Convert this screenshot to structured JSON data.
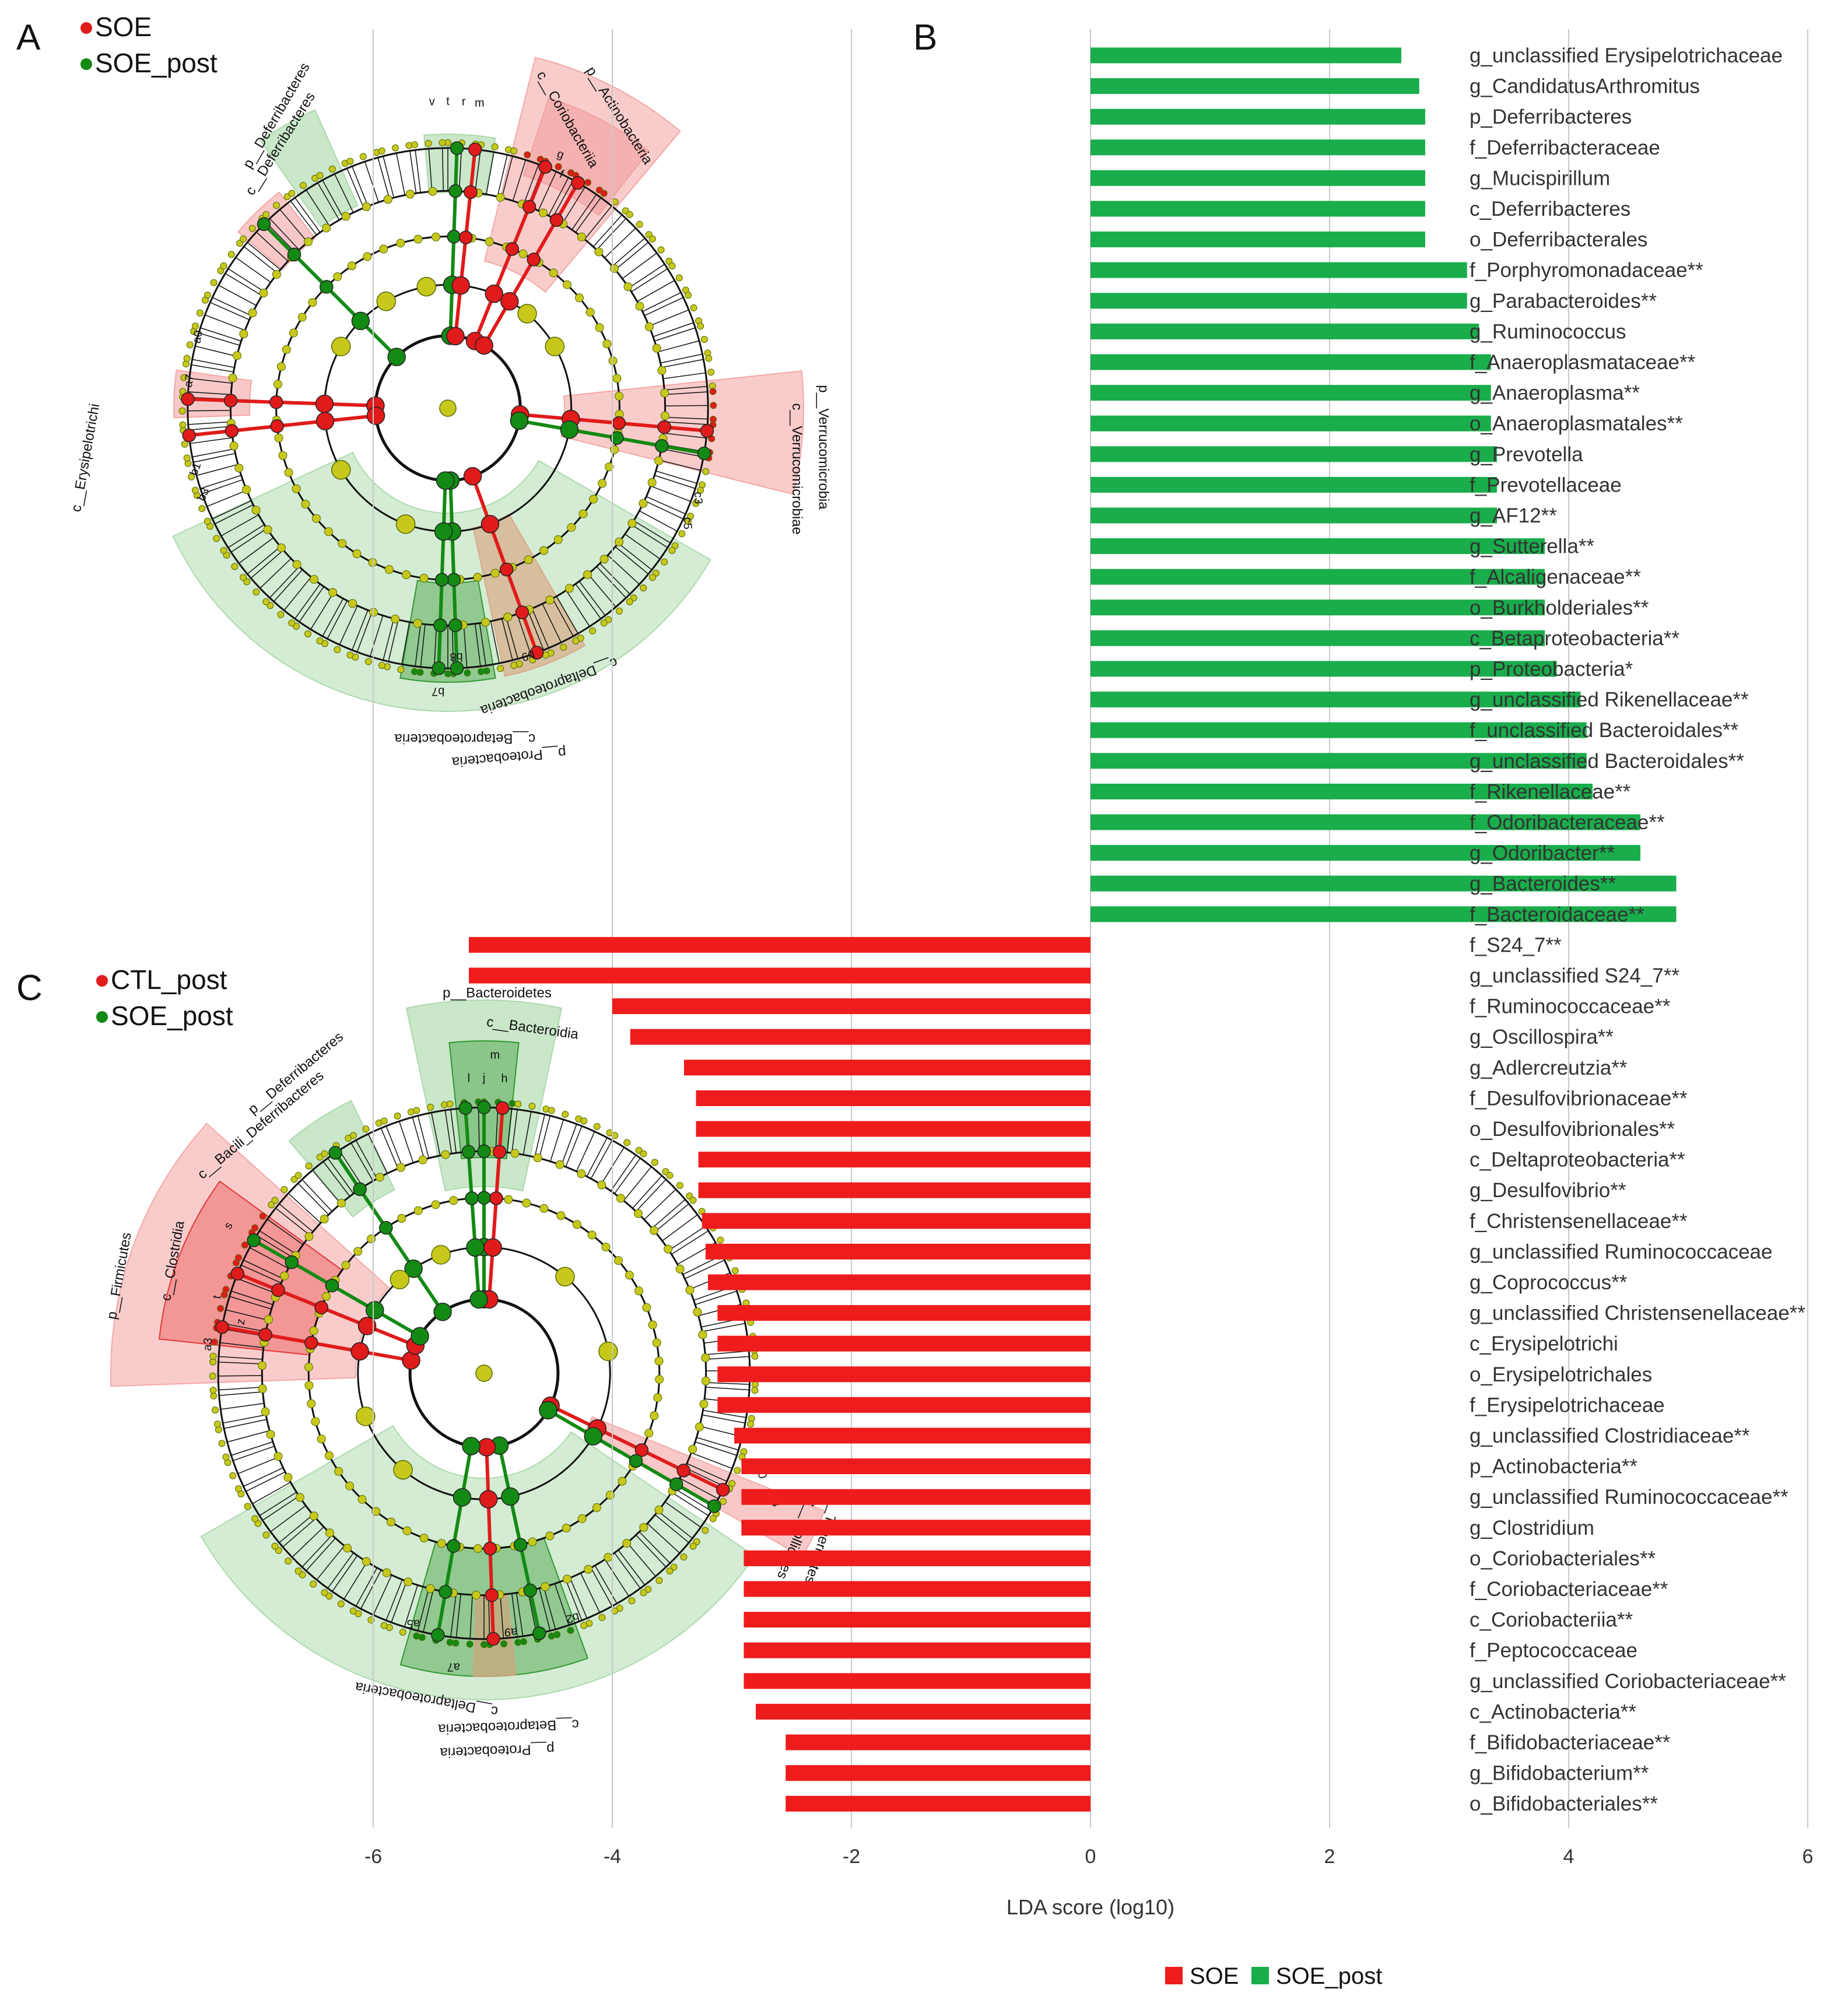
{
  "chart_data": [
    {
      "panel": "A",
      "type": "cladogram",
      "legend": [
        {
          "label": "SOE",
          "color": "#e01b1b"
        },
        {
          "label": "SOE_post",
          "color": "#138a13"
        }
      ],
      "clade_labels": [
        {
          "text": "p__Actinobacteria",
          "color": "red"
        },
        {
          "text": "c__Coriobacteriia",
          "color": "red"
        },
        {
          "text": "p__Deferribacteres",
          "color": "green"
        },
        {
          "text": "c__Deferribacteres",
          "color": "green"
        },
        {
          "text": "p__Verrucomicrobia",
          "color": "red"
        },
        {
          "text": "c__Verrucomicrobiae",
          "color": "red"
        },
        {
          "text": "c__Erysipelotrichi",
          "color": "red"
        },
        {
          "text": "c__Deltaproteobacteria",
          "color": "red"
        },
        {
          "text": "c__Betaproteobacteria",
          "color": "green"
        },
        {
          "text": "p__Proteobacteria",
          "color": "green"
        }
      ],
      "node_codes": [
        "v",
        "t",
        "u",
        "s",
        "r",
        "q",
        "p",
        "n",
        "m",
        "k",
        "i",
        "g",
        "f",
        "e",
        "d",
        "c",
        "b",
        "a",
        "a0",
        "a1",
        "a2",
        "a3",
        "a4",
        "a5",
        "a6",
        "a7",
        "a8",
        "a9",
        "b0",
        "b1",
        "b2",
        "b3",
        "b4",
        "b5",
        "b6",
        "b7",
        "b8",
        "b9",
        "c0",
        "c1",
        "c2",
        "c3",
        "c4",
        "c5",
        "x",
        "y"
      ]
    },
    {
      "panel": "C",
      "type": "cladogram",
      "legend": [
        {
          "label": "CTL_post",
          "color": "#e01b1b"
        },
        {
          "label": "SOE_post",
          "color": "#138a13"
        }
      ],
      "clade_labels": [
        {
          "text": "p__Bacteroidetes",
          "color": "green"
        },
        {
          "text": "c__Bacteroidia",
          "color": "green"
        },
        {
          "text": "p__Deferribacteres",
          "color": "green"
        },
        {
          "text": "c__Bacili_Deferribacteres",
          "color": "red"
        },
        {
          "text": "p__Firmicutes",
          "color": "red"
        },
        {
          "text": "c__Clostridia",
          "color": "red"
        },
        {
          "text": "p__Tenericutes",
          "color": "red"
        },
        {
          "text": "c__Mollicutes",
          "color": "red"
        },
        {
          "text": "c__Deltaproteobacteria",
          "color": "green"
        },
        {
          "text": "c__Betaproteobacteria",
          "color": "green"
        },
        {
          "text": "p__Proteobacteria",
          "color": "green"
        }
      ],
      "node_codes": [
        "m",
        "l",
        "j",
        "h",
        "f",
        "d",
        "b",
        "k",
        "i",
        "g",
        "e",
        "c",
        "a",
        "s",
        "r",
        "q",
        "p",
        "o",
        "n",
        "u",
        "t",
        "y",
        "w",
        "x",
        "v",
        "z",
        "a0",
        "a1",
        "a2",
        "a3",
        "a4",
        "a5",
        "a6",
        "a7",
        "a8",
        "a9",
        "b0",
        "b1",
        "b2",
        "b3",
        "b4",
        "c0",
        "c1",
        "c2",
        "c3",
        "c4",
        "c5",
        "c6",
        "c7",
        "c8",
        "c9"
      ]
    },
    {
      "panel": "B",
      "type": "bar",
      "orientation": "horizontal",
      "xlabel": "LDA score (log10)",
      "xlim": [
        -6,
        6
      ],
      "xticks": [
        -6,
        -4,
        -2,
        0,
        2,
        4,
        6
      ],
      "grid": true,
      "legend": [
        {
          "label": "SOE",
          "color": "#ee1c1c"
        },
        {
          "label": "SOE_post",
          "color": "#19ad4b"
        }
      ],
      "categories": [
        "g_unclassified Erysipelotrichaceae",
        "g_CandidatusArthromitus",
        "p_Deferribacteres",
        "f_Deferribacteraceae",
        "g_Mucispirillum",
        "c_Deferribacteres",
        "o_Deferribacterales",
        "f_Porphyromonadaceae**",
        "g_Parabacteroides**",
        "g_Ruminococcus",
        "f_Anaeroplasmataceae**",
        "g_Anaeroplasma**",
        "o_Anaeroplasmatales**",
        "g_Prevotella",
        "f_Prevotellaceae",
        "g_AF12**",
        "g_Sutterella**",
        "f_Alcaligenaceae**",
        "o_Burkholderiales**",
        "c_Betaproteobacteria**",
        "p_Proteobacteria*",
        "g_unclassified Rikenellaceae**",
        "f_unclassified Bacteroidales**",
        "g_unclassified Bacteroidales**",
        "f_Rikenellaceae**",
        "f_Odoribacteraceae**",
        "g_Odoribacter**",
        "g_Bacteroides**",
        "f_Bacteroidaceae**",
        "f_S24_7**",
        "g_unclassified S24_7**",
        "f_Ruminococcaceae**",
        "g_Oscillospira**",
        "g_Adlercreutzia**",
        "f_Desulfovibrionaceae**",
        "o_Desulfovibrionales**",
        "c_Deltaproteobacteria**",
        "g_Desulfovibrio**",
        "f_Christensenellaceae**",
        "g_unclassified Ruminococcaceae",
        "g_Coprococcus**",
        "g_unclassified Christensenellaceae**",
        "c_Erysipelotrichi",
        "o_Erysipelotrichales",
        "f_Erysipelotrichaceae",
        "g_unclassified Clostridiaceae**",
        "p_Actinobacteria**",
        "g_unclassified Ruminococcaceae**",
        "g_Clostridium",
        "o_Coriobacteriales**",
        "f_Coriobacteriaceae**",
        "c_Coriobacteriia**",
        "f_Peptococcaceae",
        "g_unclassified Coriobacteriaceae**",
        "c_Actinobacteria**",
        "f_Bifidobacteriaceae**",
        "g_Bifidobacterium**",
        "o_Bifidobacteriales**"
      ],
      "values": [
        2.6,
        2.75,
        2.8,
        2.8,
        2.8,
        2.8,
        2.8,
        3.15,
        3.15,
        3.25,
        3.35,
        3.35,
        3.35,
        3.4,
        3.4,
        3.4,
        3.8,
        3.8,
        3.8,
        3.8,
        3.9,
        4.1,
        4.15,
        4.15,
        4.2,
        4.6,
        4.6,
        4.9,
        4.9,
        -5.2,
        -5.2,
        -4.0,
        -3.85,
        -3.4,
        -3.3,
        -3.3,
        -3.28,
        -3.28,
        -3.25,
        -3.22,
        -3.2,
        -3.12,
        -3.12,
        -3.12,
        -3.12,
        -2.98,
        -2.92,
        -2.92,
        -2.92,
        -2.9,
        -2.9,
        -2.9,
        -2.9,
        -2.9,
        -2.8,
        -2.55,
        -2.55,
        -2.55
      ]
    }
  ]
}
